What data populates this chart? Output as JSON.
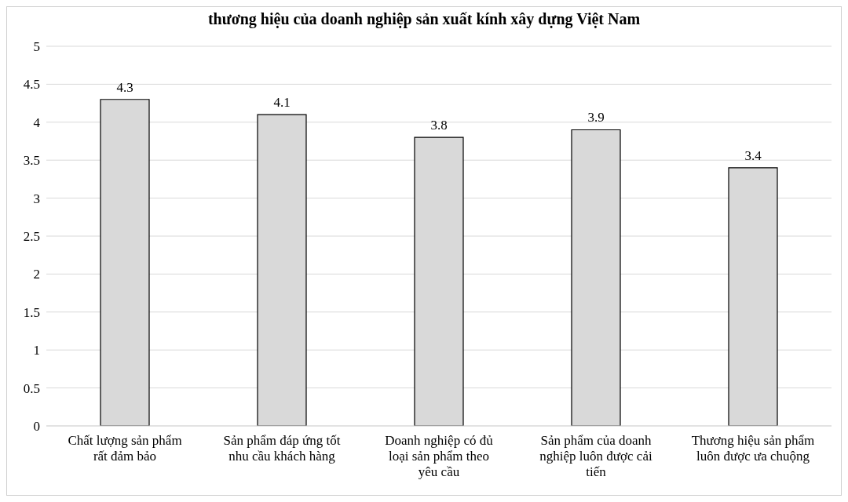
{
  "chart_data": {
    "type": "bar",
    "title": "thương hiệu của doanh nghiệp sản xuất kính xây dựng Việt Nam",
    "categories": [
      "Chất lượng sản phẩm rất đảm bảo",
      "Sản phẩm đáp ứng tốt nhu cầu khách hàng",
      "Doanh nghiệp có đủ loại sản phẩm theo yêu cầu",
      "Sản phẩm của doanh nghiệp luôn được cải tiến",
      "Thương hiệu sản phẩm luôn được ưa chuộng"
    ],
    "values": [
      4.3,
      4.1,
      3.8,
      3.9,
      3.4
    ],
    "color": "#d9d9d9",
    "ylim": [
      0,
      5
    ],
    "yticks": [
      0,
      0.5,
      1,
      1.5,
      2,
      2.5,
      3,
      3.5,
      4,
      4.5,
      5
    ],
    "grid": "y",
    "data_labels": true
  }
}
